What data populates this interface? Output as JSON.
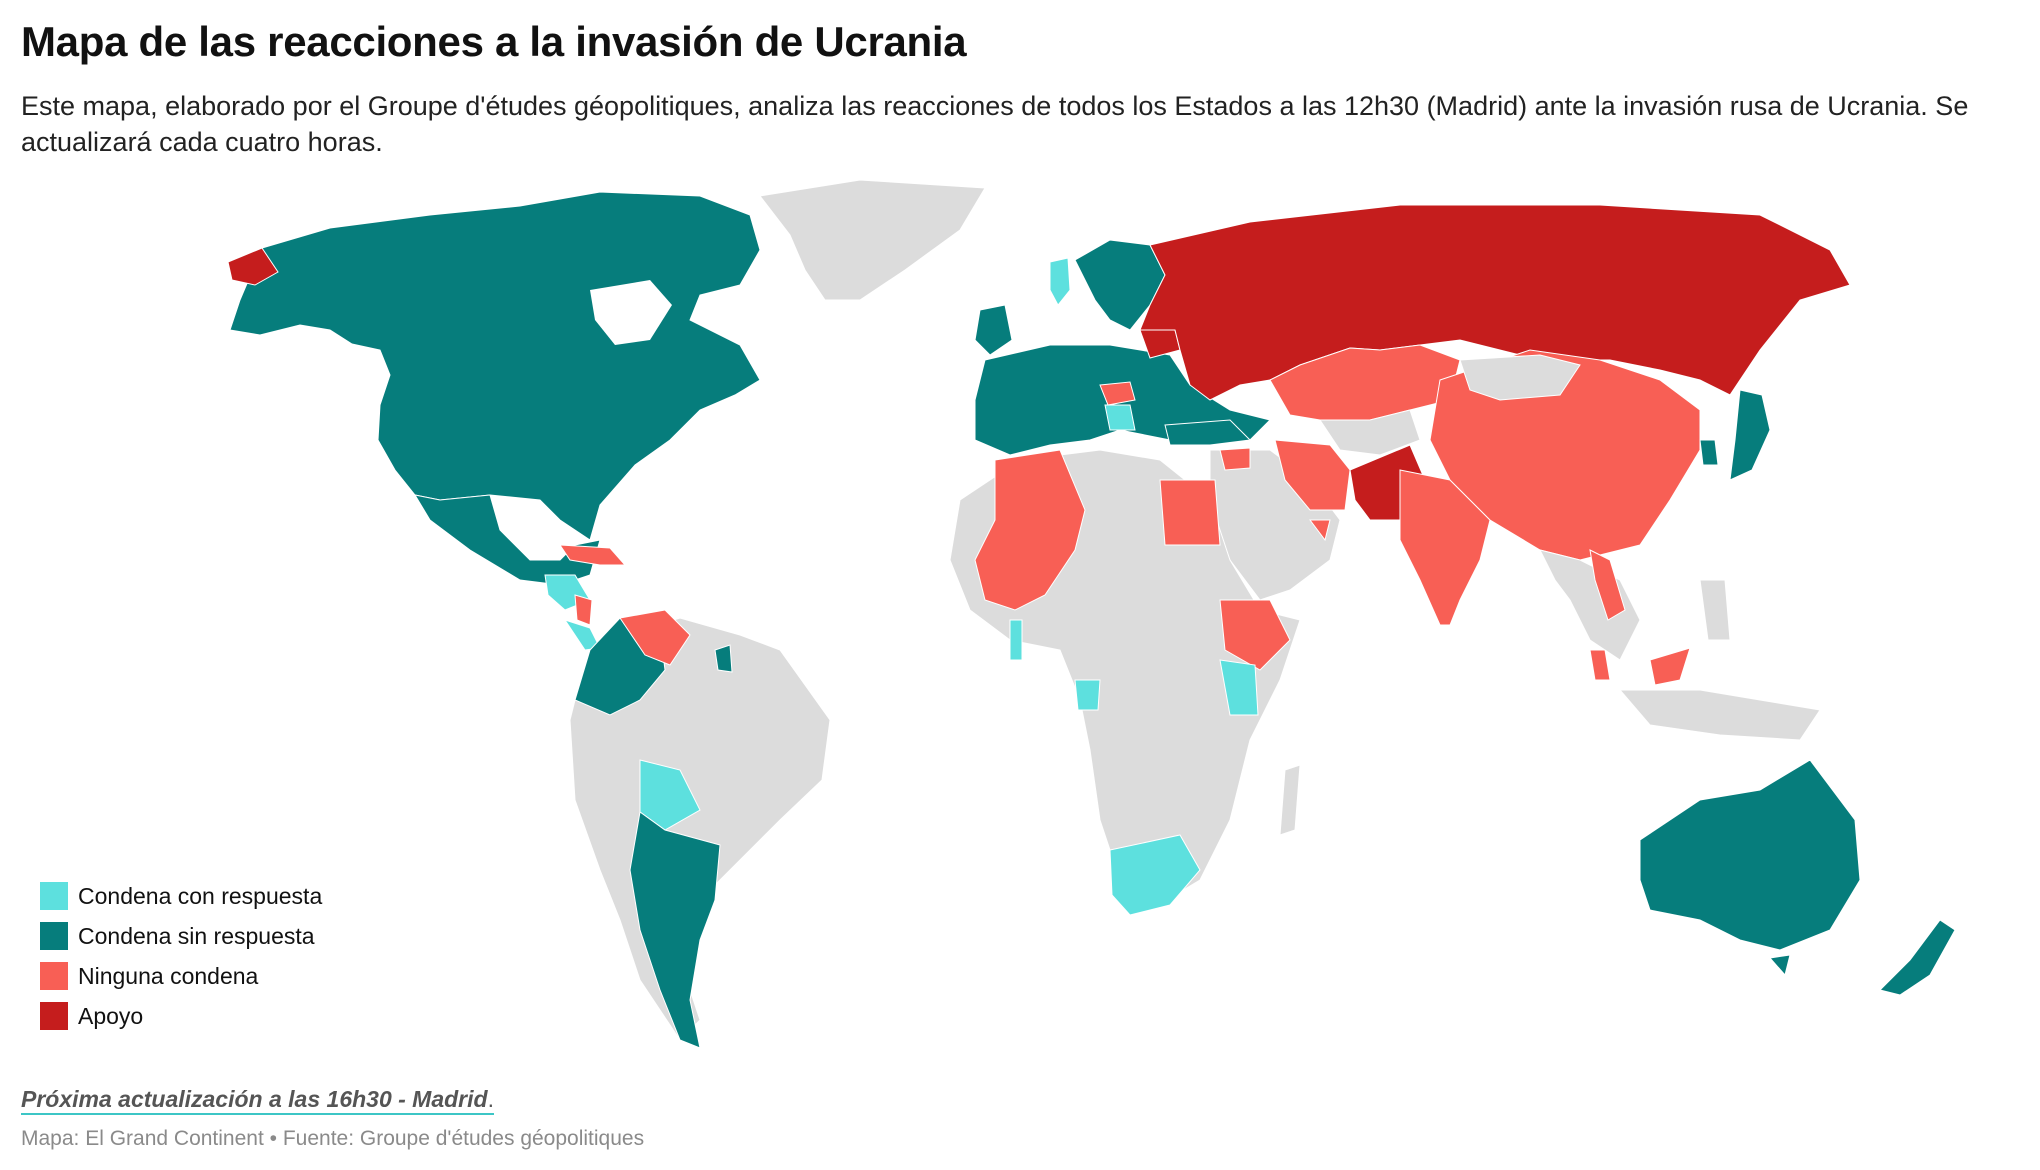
{
  "title": "Mapa de las reacciones a la invasión de Ucrania",
  "subtitle": "Este mapa, elaborado por el Groupe d'études géopolitiques, analiza las reacciones de todos los Estados a las 12h30 (Madrid) ante la invasión rusa de Ucrania. Se actualizará cada cuatro horas.",
  "legend": [
    {
      "label": "Condena con respuesta",
      "color": "#5de0de"
    },
    {
      "label": "Condena sin respuesta",
      "color": "#067d7c"
    },
    {
      "label": "Ninguna condena",
      "color": "#f85f55"
    },
    {
      "label": "Apoyo",
      "color": "#c51d1d"
    }
  ],
  "no_data_color": "#dcdcdc",
  "note": {
    "text": "Próxima actualización a las 16h30 - Madrid",
    "suffix": "."
  },
  "source": "Mapa: El Grand Continent • Fuente: Groupe d'études géopolitiques"
}
